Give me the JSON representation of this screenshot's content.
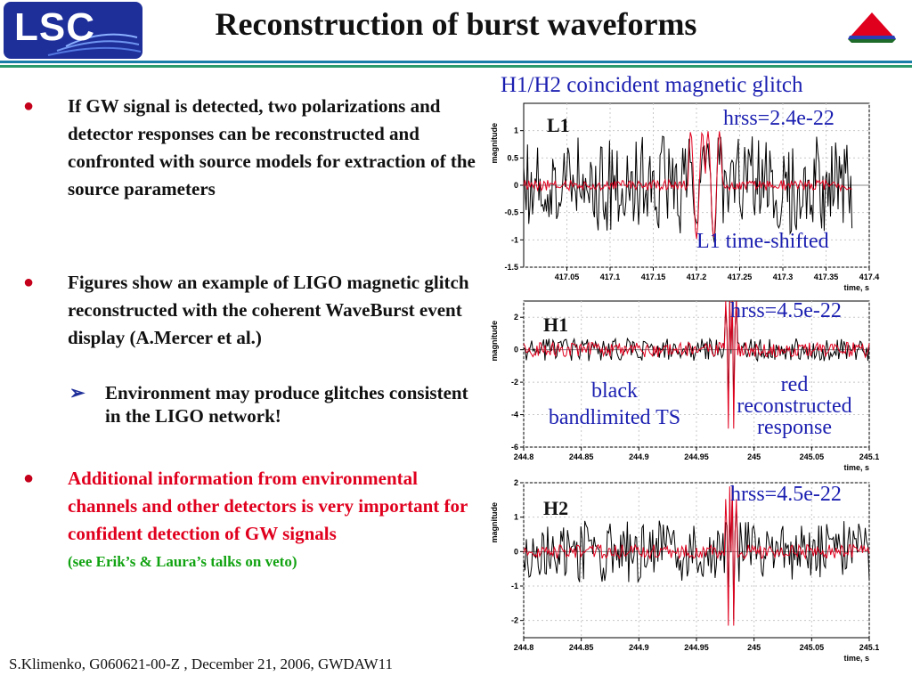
{
  "slide": {
    "title": "Reconstruction of burst waveforms",
    "logo": "LSC",
    "footer": "S.Klimenko, G060621-00-Z , December 21, 2006,  GWDAW11"
  },
  "bullets": [
    {
      "text": "If GW signal is detected, two polarizations and detector responses can be reconstructed and confronted with source models for extraction of the source parameters"
    },
    {
      "text": "Figures show an example of LIGO magnetic glitch reconstructed with the coherent WaveBurst event display (A.Mercer et al.)"
    },
    {
      "text": "Environment may produce glitches consistent in the LIGO network!"
    },
    {
      "text": "Additional information from environmental channels and other detectors is very important for confident detection of GW signals"
    },
    {
      "text": "(see Erik’s & Laura’s talks on veto)"
    }
  ],
  "figure": {
    "caption": "H1/H2 coincident  magnetic glitch"
  },
  "colors": {
    "accent_red": "#e0001e",
    "note_green": "#12a312",
    "annotation_blue": "#1b1fb0",
    "bar_teal": "#1a7fa8",
    "bar_green": "#2a9a6a"
  },
  "icons": {
    "logo": "lsc-logo-icon",
    "corner": "red-green-triangle-icon",
    "bullet": "round-bullet-icon",
    "sub_bullet": "arrow-bullet-icon"
  },
  "chart_data": [
    {
      "type": "line",
      "ifo_label": "L1",
      "ylabel": "magnitude",
      "xlabel": "time, s",
      "xlim": [
        417.0,
        417.4
      ],
      "ylim": [
        -1.5,
        1.5
      ],
      "xticks": [
        "417.05",
        "417.1",
        "417.15",
        "417.2",
        "417.25",
        "417.3",
        "417.35",
        "417.4"
      ],
      "yticks": [
        "-1.5",
        "-1",
        "-0.5",
        "0",
        "0.5",
        "1"
      ],
      "grid": true,
      "annotations": [
        "hrss=2.4e-22",
        "L1 time-shifted"
      ],
      "signal_window": [
        417.19,
        417.23
      ],
      "series": [
        {
          "color": "#000000",
          "noise_amplitude": 0.9,
          "x_range": [
            417.0,
            417.38
          ]
        },
        {
          "color": "#e0001e",
          "peak_amplitude": 1.1,
          "x_range": [
            417.0,
            417.38
          ]
        }
      ]
    },
    {
      "type": "line",
      "ifo_label": "H1",
      "ylabel": "magnitude",
      "xlabel": "time, s",
      "xlim": [
        244.8,
        245.1
      ],
      "ylim": [
        -6,
        3
      ],
      "xticks": [
        "244.8",
        "244.85",
        "244.9",
        "244.95",
        "245",
        "245.05",
        "245.1"
      ],
      "yticks": [
        "-6",
        "-4",
        "-2",
        "0",
        "2"
      ],
      "grid": true,
      "annotations": [
        "hrss=4.5e-22",
        "black",
        "bandlimited TS",
        "red",
        "reconstructed",
        "response"
      ],
      "signal_window": [
        244.975,
        244.985
      ],
      "series": [
        {
          "color": "#000000",
          "noise_amplitude": 0.7,
          "x_range": [
            244.8,
            245.1
          ]
        },
        {
          "color": "#e0001e",
          "peak_amplitude": 5.2,
          "x_range": [
            244.8,
            245.1
          ]
        }
      ]
    },
    {
      "type": "line",
      "ifo_label": "H2",
      "ylabel": "magnitude",
      "xlabel": "time, s",
      "xlim": [
        244.8,
        245.1
      ],
      "ylim": [
        -2.5,
        2
      ],
      "xticks": [
        "244.8",
        "244.85",
        "244.9",
        "244.95",
        "245",
        "245.05",
        "245.1"
      ],
      "yticks": [
        "-2",
        "-1",
        "0",
        "1",
        "2"
      ],
      "grid": true,
      "annotations": [
        "hrss=4.5e-22"
      ],
      "signal_window": [
        244.975,
        244.985
      ],
      "series": [
        {
          "color": "#000000",
          "noise_amplitude": 0.9,
          "x_range": [
            244.8,
            245.1
          ]
        },
        {
          "color": "#e0001e",
          "peak_amplitude": 2.3,
          "x_range": [
            244.8,
            245.1
          ]
        }
      ]
    }
  ]
}
